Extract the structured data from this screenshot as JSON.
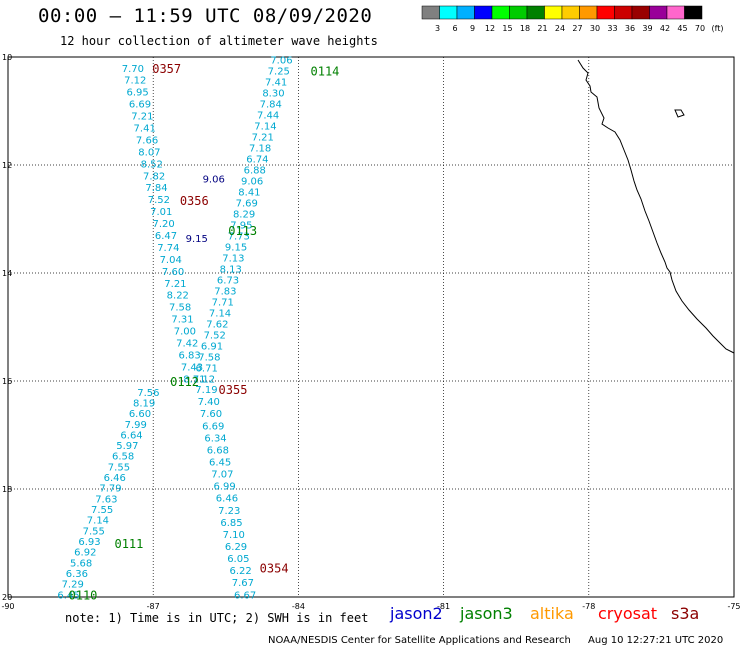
{
  "header": {
    "title": "00:00 – 11:59 UTC 08/09/2020",
    "subtitle": "12 hour collection of altimeter wave heights"
  },
  "scale": {
    "labels": [
      "3",
      "6",
      "9",
      "12",
      "15",
      "18",
      "21",
      "24",
      "27",
      "30",
      "33",
      "36",
      "39",
      "42",
      "45",
      "70",
      "(ft)"
    ],
    "colors": [
      "#808080",
      "#00ffff",
      "#00b0ff",
      "#0000ff",
      "#00ff00",
      "#00cc00",
      "#008000",
      "#ffff00",
      "#ffcc00",
      "#ff9900",
      "#ff0000",
      "#cc0000",
      "#990000",
      "#990099",
      "#ff66cc",
      "#000000"
    ]
  },
  "axes": {
    "y_ticks": [
      "10",
      "12",
      "14",
      "16",
      "18",
      "20"
    ],
    "x_ticks": [
      "-90",
      "-87",
      "-84",
      "-81",
      "-78",
      "-75"
    ]
  },
  "passes": [
    {
      "id": "0357",
      "color": "#8b0000",
      "lon": -87.02,
      "lat": -10.2
    },
    {
      "id": "0114",
      "color": "#008000",
      "lon": -83.75,
      "lat": -10.25
    },
    {
      "id": "0356",
      "color": "#8b0000",
      "lon": -86.45,
      "lat": -12.65
    },
    {
      "id": "0113",
      "color": "#008000",
      "lon": -85.45,
      "lat": -13.2
    },
    {
      "id": "0112",
      "color": "#008000",
      "lon": -86.65,
      "lat": -16.0
    },
    {
      "id": "0355",
      "color": "#8b0000",
      "lon": -85.65,
      "lat": -16.15
    },
    {
      "id": "0111",
      "color": "#008000",
      "lon": -87.8,
      "lat": -19.0
    },
    {
      "id": "0354",
      "color": "#8b0000",
      "lon": -84.8,
      "lat": -19.45
    },
    {
      "id": "0110",
      "color": "#008000",
      "lon": -88.75,
      "lat": -19.95
    }
  ],
  "tracks": [
    {
      "name": "track-0357",
      "color": "#00a8d0",
      "lon_start": -87.42,
      "lat_start": -10.2,
      "lon_end": -86.15,
      "lat_end": -15.95,
      "values": [
        "7.70",
        "7.12",
        "6.95",
        "6.69",
        "7.21",
        "7.41",
        "7.66",
        "8.07",
        "8.52",
        "7.82",
        "7.84",
        "7.52",
        "7.01",
        "7.20",
        "6.47",
        "7.74",
        "7.04",
        "7.60",
        "7.21",
        "8.22",
        "7.58",
        "7.31",
        "7.00",
        "7.42",
        "6.83",
        "7.43",
        "8.11"
      ]
    },
    {
      "name": "track-0114",
      "color": "#00a8d0",
      "lon_start": -84.35,
      "lat_start": -10.05,
      "lon_end": -85.95,
      "lat_end": -15.95,
      "values": [
        "7.06",
        "7.25",
        "7.41",
        "8.30",
        "7.84",
        "7.44",
        "7.14",
        "7.21",
        "7.18",
        "6.74",
        "6.88",
        "9.06",
        "8.41",
        "7.69",
        "8.29",
        "7.95",
        "7.73",
        "9.15",
        "7.13",
        "8.13",
        "6.73",
        "7.83",
        "7.71",
        "7.14",
        "7.62",
        "7.52",
        "6.91",
        "7.58",
        "6.71",
        "7.12"
      ]
    },
    {
      "name": "track-0112",
      "color": "#00a8d0",
      "lon_start": -87.1,
      "lat_start": -16.2,
      "lon_end": -88.75,
      "lat_end": -19.95,
      "values": [
        "7.56",
        "8.19",
        "6.60",
        "7.99",
        "6.64",
        "5.97",
        "6.58",
        "7.55",
        "6.46",
        "7.79",
        "7.63",
        "7.55",
        "7.14",
        "7.55",
        "6.93",
        "6.92",
        "5.68",
        "6.36",
        "7.29",
        "6.45"
      ]
    },
    {
      "name": "track-0355",
      "color": "#00a8d0",
      "lon_start": -85.9,
      "lat_start": -16.15,
      "lon_end": -85.1,
      "lat_end": -19.95,
      "values": [
        "7.19",
        "7.40",
        "7.60",
        "6.69",
        "6.34",
        "6.68",
        "6.45",
        "7.07",
        "6.99",
        "6.46",
        "7.23",
        "6.85",
        "7.10",
        "6.29",
        "6.05",
        "6.22",
        "7.67",
        "6.67"
      ]
    }
  ],
  "dark_values": [
    {
      "text": "9.06",
      "lon": -85.75,
      "lat": -12.25
    },
    {
      "text": "9.15",
      "lon": -86.1,
      "lat": -13.35
    }
  ],
  "note": "note: 1) Time is in UTC; 2) SWH is in feet",
  "satellites": [
    {
      "name": "jason2",
      "color": "#0000cc"
    },
    {
      "name": "jason3",
      "color": "#008000"
    },
    {
      "name": "altika",
      "color": "#ff9900"
    },
    {
      "name": "cryosat",
      "color": "#ff0000"
    },
    {
      "name": "s3a",
      "color": "#8b0000"
    }
  ],
  "footer": {
    "agency": "NOAA/NESDIS Center for Satellite Applications and Research",
    "timestamp": "Aug 10 12:27:21 UTC 2020"
  }
}
